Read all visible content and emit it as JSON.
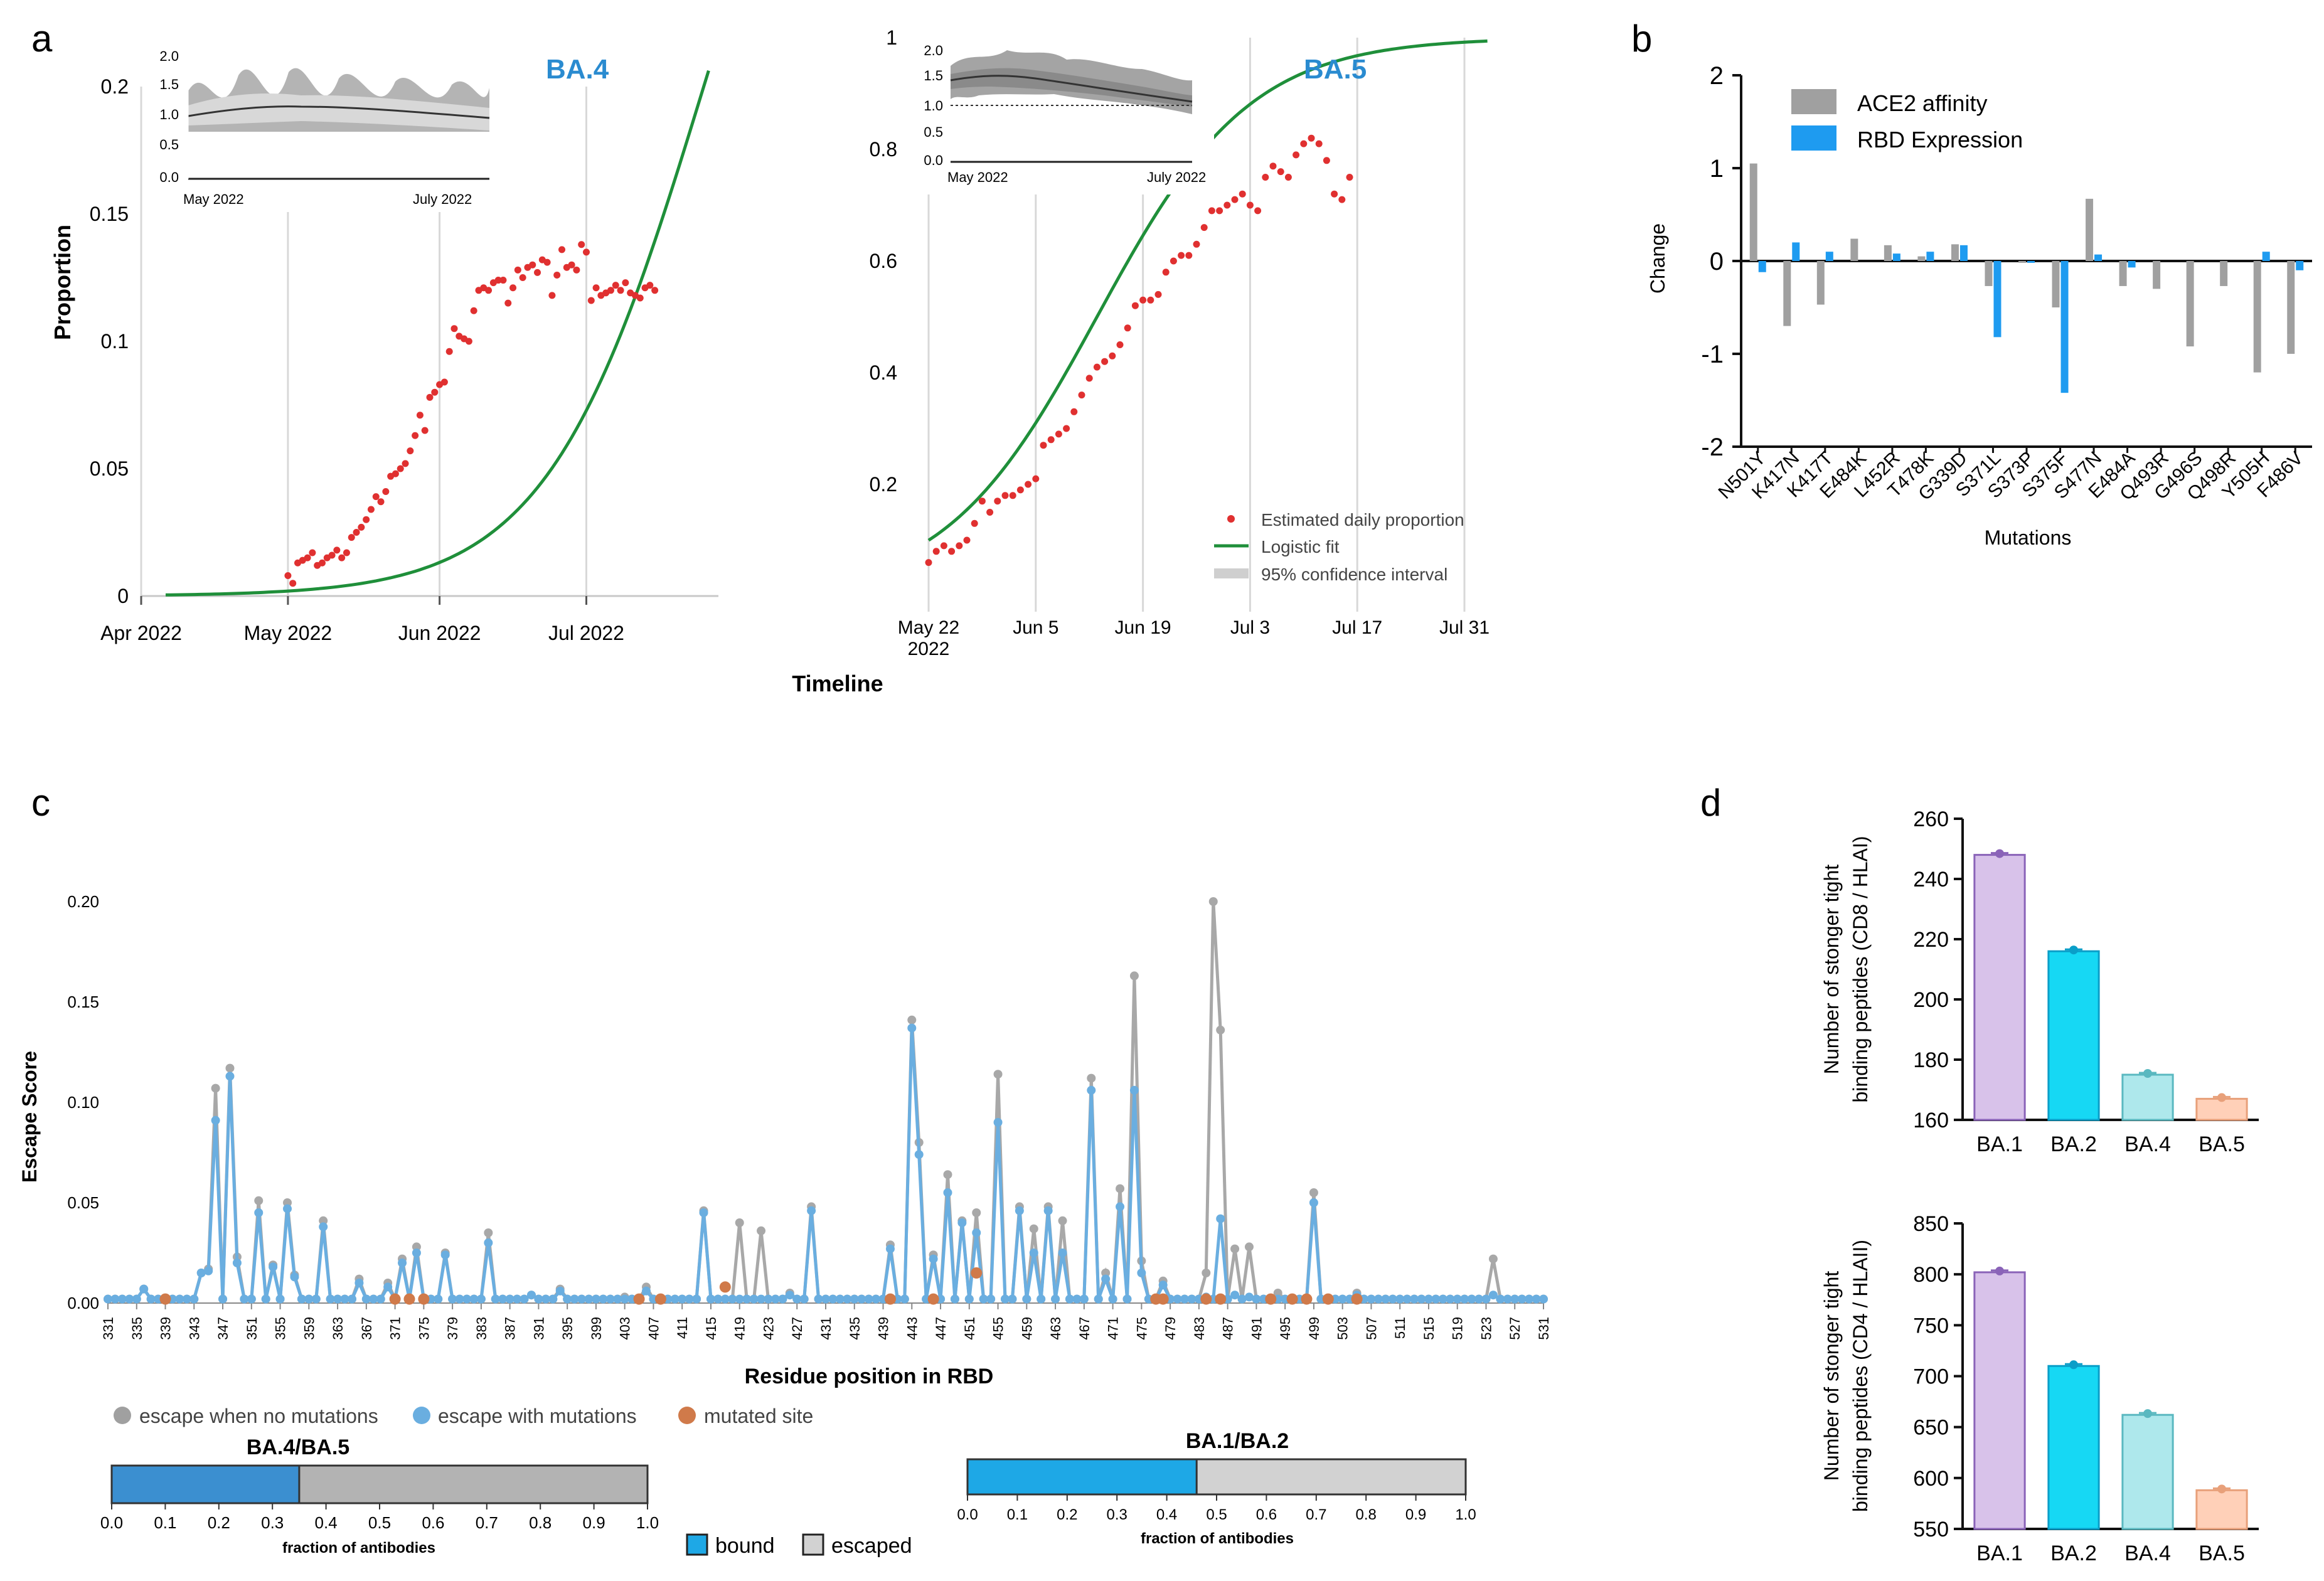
{
  "figure": {
    "panel_labels": [
      "a",
      "b",
      "c",
      "d"
    ],
    "a_xlabel": "Timeline",
    "a_ylabel": "Proportion",
    "inset_ba4": {
      "yticks": [
        "0.0",
        "0.5",
        "1.0",
        "1.5",
        "2.0"
      ],
      "xticks": [
        "May 2022",
        "July 2022"
      ]
    },
    "inset_ba5": {
      "yticks": [
        "0.0",
        "0.5",
        "1.0",
        "1.5",
        "2.0"
      ],
      "xticks": [
        "May 2022",
        "July 2022"
      ]
    },
    "legend_a": [
      "Estimated daily proportion",
      "Logistic fit",
      "95% confidence interval"
    ],
    "legend_c": [
      "escape when no mutations",
      "escape with mutations",
      "mutated site"
    ],
    "bar_ba45": {
      "label": "BA.4/BA.5",
      "bound_fraction": 0.35,
      "xlabel": "fraction of antibodies",
      "ticks": [
        "0.0",
        "0.1",
        "0.2",
        "0.3",
        "0.4",
        "0.5",
        "0.6",
        "0.7",
        "0.8",
        "0.9",
        "1.0"
      ]
    },
    "bar_ba12": {
      "label": "BA.1/BA.2",
      "bound_fraction": 0.46,
      "xlabel": "fraction of antibodies",
      "ticks": [
        "0.0",
        "0.1",
        "0.2",
        "0.3",
        "0.4",
        "0.5",
        "0.6",
        "0.7",
        "0.8",
        "0.9",
        "1.0"
      ]
    },
    "bound_escaped_legend": [
      "bound",
      "escaped"
    ]
  },
  "colors": {
    "red": "#e03030",
    "green": "#1f8f3a",
    "gray": "#a0a0a0",
    "blue": "#1e9bf0",
    "lightblue": "#6aaee0",
    "orange": "#d07a4a",
    "title_blue": "#2a8bd0"
  },
  "chart_data": [
    {
      "id": "a1",
      "type": "scatter",
      "title": "BA.4",
      "xlabel": "Timeline",
      "ylabel": "Proportion",
      "xticks": [
        "Apr 2022",
        "May 2022",
        "Jun 2022",
        "Jul 2022"
      ],
      "yticks": [
        "0",
        "0.05",
        "0.1",
        "0.15",
        "0.2"
      ],
      "xlim": [
        0,
        118
      ],
      "ylim": [
        0,
        0.2
      ],
      "points_day": [
        30,
        31,
        32,
        33,
        34,
        35,
        36,
        37,
        38,
        39,
        40,
        41,
        42,
        43,
        44,
        45,
        46,
        47,
        48,
        49,
        50,
        51,
        52,
        53,
        54,
        55,
        56,
        57,
        58,
        59,
        60,
        61,
        62,
        63,
        64,
        65,
        66,
        67,
        68,
        69,
        70,
        71,
        72,
        73,
        74,
        75,
        76,
        77,
        78,
        79,
        80,
        81,
        82,
        83,
        84,
        85,
        86,
        87,
        88,
        89,
        90,
        91,
        92,
        93,
        94,
        95,
        96,
        97,
        98,
        99,
        100,
        101,
        102,
        103,
        104,
        105
      ],
      "points_y": [
        0.008,
        0.005,
        0.013,
        0.014,
        0.015,
        0.017,
        0.012,
        0.013,
        0.015,
        0.016,
        0.018,
        0.015,
        0.017,
        0.023,
        0.025,
        0.027,
        0.03,
        0.034,
        0.039,
        0.037,
        0.041,
        0.047,
        0.048,
        0.05,
        0.052,
        0.057,
        0.063,
        0.071,
        0.065,
        0.078,
        0.08,
        0.083,
        0.084,
        0.096,
        0.105,
        0.102,
        0.101,
        0.1,
        0.112,
        0.12,
        0.121,
        0.12,
        0.123,
        0.124,
        0.124,
        0.115,
        0.121,
        0.128,
        0.125,
        0.129,
        0.13,
        0.127,
        0.132,
        0.131,
        0.118,
        0.126,
        0.136,
        0.129,
        0.13,
        0.128,
        0.138,
        0.135,
        0.116,
        0.121,
        0.118,
        0.119,
        0.12,
        0.122,
        0.12,
        0.123,
        0.119,
        0.118,
        0.117,
        0.121,
        0.122,
        0.12
      ],
      "fit_k": 0.0626,
      "fit_t0": 115,
      "fit_L": 0.4
    },
    {
      "id": "a2",
      "type": "scatter",
      "title": "BA.5",
      "xticks": [
        "May 22\n2022",
        "Jun 5",
        "Jun 19",
        "Jul 3",
        "Jul 17",
        "Jul 31"
      ],
      "yticks": [
        "0.2",
        "0.4",
        "0.6",
        "0.8",
        "1"
      ],
      "xlim": [
        0,
        75
      ],
      "ylim": [
        0,
        1
      ],
      "points_day": [
        0,
        1,
        2,
        3,
        4,
        5,
        6,
        7,
        8,
        9,
        10,
        11,
        12,
        13,
        14,
        15,
        16,
        17,
        18,
        19,
        20,
        21,
        22,
        23,
        24,
        25,
        26,
        27,
        28,
        29,
        30,
        31,
        32,
        33,
        34,
        35,
        36,
        37,
        38,
        39,
        40,
        41,
        42,
        43,
        44,
        45,
        46,
        47,
        48,
        49,
        50,
        51,
        52,
        53,
        54,
        55
      ],
      "points_y": [
        0.06,
        0.08,
        0.09,
        0.08,
        0.09,
        0.1,
        0.13,
        0.17,
        0.15,
        0.17,
        0.18,
        0.18,
        0.19,
        0.2,
        0.21,
        0.27,
        0.28,
        0.29,
        0.3,
        0.33,
        0.36,
        0.39,
        0.41,
        0.42,
        0.43,
        0.45,
        0.48,
        0.52,
        0.53,
        0.53,
        0.54,
        0.58,
        0.6,
        0.61,
        0.61,
        0.63,
        0.66,
        0.69,
        0.69,
        0.7,
        0.71,
        0.72,
        0.7,
        0.69,
        0.75,
        0.77,
        0.76,
        0.75,
        0.79,
        0.81,
        0.82,
        0.81,
        0.78,
        0.72,
        0.71,
        0.75
      ],
      "fit_k": 0.1,
      "fit_t0": 22
    },
    {
      "id": "b",
      "type": "bar",
      "series_names": [
        "ACE2 affinity",
        "RBD Expression"
      ],
      "categories": [
        "N501Y",
        "K417N",
        "K417T",
        "E484K",
        "L452R",
        "T478K",
        "G339D",
        "S371L",
        "S373P",
        "S375F",
        "S477N",
        "E484A",
        "Q493R",
        "G496S",
        "Q498R",
        "Y505H",
        "F486V"
      ],
      "ace2": [
        1.05,
        -0.7,
        -0.47,
        0.24,
        0.17,
        0.05,
        0.18,
        -0.27,
        -0.02,
        -0.5,
        0.67,
        -0.27,
        -0.3,
        -0.92,
        -0.27,
        -1.2,
        -1.0
      ],
      "rbd": [
        -0.12,
        0.2,
        0.1,
        0.0,
        0.08,
        0.1,
        0.17,
        -0.82,
        -0.02,
        -1.42,
        0.07,
        -0.07,
        0.0,
        0.0,
        0.0,
        0.1,
        -0.1
      ],
      "ylabel": "Change",
      "xlabel": "Mutations",
      "yticks": [
        "2",
        "1",
        "0",
        "-1",
        "-2"
      ],
      "ylim": [
        -2,
        2
      ]
    },
    {
      "id": "c",
      "type": "line",
      "ylabel": "Escape Score",
      "xlabel": "Residue position in RBD",
      "yticks": [
        "0.00",
        "0.05",
        "0.10",
        "0.15",
        "0.20"
      ],
      "ylim": [
        0,
        0.2
      ],
      "xticks": [
        "331",
        "335",
        "339",
        "343",
        "347",
        "351",
        "355",
        "359",
        "363",
        "367",
        "371",
        "375",
        "379",
        "383",
        "387",
        "391",
        "395",
        "399",
        "403",
        "407",
        "411",
        "415",
        "419",
        "423",
        "427",
        "431",
        "435",
        "439",
        "443",
        "447",
        "451",
        "455",
        "459",
        "463",
        "467",
        "471",
        "475",
        "479",
        "483",
        "487",
        "491",
        "495",
        "499",
        "503",
        "507",
        "511",
        "515",
        "519",
        "523",
        "527",
        "531"
      ],
      "xlim": [
        331,
        531
      ],
      "gray_peaks": [
        [
          336,
          0.007
        ],
        [
          344,
          0.015
        ],
        [
          345,
          0.017
        ],
        [
          346,
          0.107
        ],
        [
          348,
          0.117
        ],
        [
          349,
          0.023
        ],
        [
          352,
          0.051
        ],
        [
          354,
          0.019
        ],
        [
          356,
          0.05
        ],
        [
          357,
          0.014
        ],
        [
          361,
          0.041
        ],
        [
          366,
          0.012
        ],
        [
          370,
          0.01
        ],
        [
          372,
          0.022
        ],
        [
          374,
          0.028
        ],
        [
          378,
          0.025
        ],
        [
          384,
          0.035
        ],
        [
          390,
          0.004
        ],
        [
          394,
          0.007
        ],
        [
          403,
          0.003
        ],
        [
          406,
          0.008
        ],
        [
          414,
          0.046
        ],
        [
          419,
          0.04
        ],
        [
          422,
          0.036
        ],
        [
          426,
          0.005
        ],
        [
          429,
          0.048
        ],
        [
          440,
          0.029
        ],
        [
          443,
          0.141
        ],
        [
          444,
          0.08
        ],
        [
          446,
          0.024
        ],
        [
          448,
          0.064
        ],
        [
          450,
          0.041
        ],
        [
          452,
          0.045
        ],
        [
          455,
          0.114
        ],
        [
          458,
          0.048
        ],
        [
          460,
          0.037
        ],
        [
          462,
          0.048
        ],
        [
          464,
          0.041
        ],
        [
          468,
          0.112
        ],
        [
          470,
          0.015
        ],
        [
          472,
          0.057
        ],
        [
          474,
          0.163
        ],
        [
          475,
          0.021
        ],
        [
          478,
          0.011
        ],
        [
          484,
          0.015
        ],
        [
          485,
          0.2
        ],
        [
          486,
          0.136
        ],
        [
          488,
          0.027
        ],
        [
          490,
          0.028
        ],
        [
          494,
          0.005
        ],
        [
          499,
          0.055
        ],
        [
          505,
          0.005
        ],
        [
          524,
          0.022
        ]
      ],
      "blue_peaks": [
        [
          336,
          0.007
        ],
        [
          344,
          0.015
        ],
        [
          345,
          0.016
        ],
        [
          346,
          0.091
        ],
        [
          348,
          0.113
        ],
        [
          349,
          0.02
        ],
        [
          352,
          0.045
        ],
        [
          354,
          0.018
        ],
        [
          356,
          0.047
        ],
        [
          357,
          0.013
        ],
        [
          361,
          0.038
        ],
        [
          366,
          0.01
        ],
        [
          370,
          0.008
        ],
        [
          372,
          0.02
        ],
        [
          374,
          0.025
        ],
        [
          378,
          0.024
        ],
        [
          384,
          0.03
        ],
        [
          390,
          0.004
        ],
        [
          394,
          0.006
        ],
        [
          406,
          0.006
        ],
        [
          414,
          0.045
        ],
        [
          426,
          0.004
        ],
        [
          429,
          0.046
        ],
        [
          440,
          0.027
        ],
        [
          443,
          0.137
        ],
        [
          444,
          0.074
        ],
        [
          446,
          0.022
        ],
        [
          448,
          0.055
        ],
        [
          450,
          0.04
        ],
        [
          452,
          0.035
        ],
        [
          455,
          0.09
        ],
        [
          458,
          0.046
        ],
        [
          460,
          0.025
        ],
        [
          462,
          0.046
        ],
        [
          464,
          0.025
        ],
        [
          468,
          0.106
        ],
        [
          470,
          0.012
        ],
        [
          472,
          0.048
        ],
        [
          474,
          0.106
        ],
        [
          475,
          0.015
        ],
        [
          478,
          0.009
        ],
        [
          484,
          0.003
        ],
        [
          486,
          0.042
        ],
        [
          488,
          0.004
        ],
        [
          490,
          0.003
        ],
        [
          499,
          0.05
        ],
        [
          505,
          0.004
        ],
        [
          524,
          0.004
        ]
      ],
      "mutated_sites": [
        [
          339,
          0.002
        ],
        [
          371,
          0.002
        ],
        [
          373,
          0.002
        ],
        [
          375,
          0.002
        ],
        [
          405,
          0.002
        ],
        [
          408,
          0.002
        ],
        [
          417,
          0.008
        ],
        [
          440,
          0.002
        ],
        [
          446,
          0.002
        ],
        [
          452,
          0.015
        ],
        [
          477,
          0.002
        ],
        [
          478,
          0.002
        ],
        [
          484,
          0.002
        ],
        [
          486,
          0.002
        ],
        [
          493,
          0.002
        ],
        [
          496,
          0.002
        ],
        [
          498,
          0.002
        ],
        [
          501,
          0.002
        ],
        [
          505,
          0.002
        ]
      ]
    },
    {
      "id": "d1",
      "type": "bar",
      "categories": [
        "BA.1",
        "BA.2",
        "BA.4",
        "BA.5"
      ],
      "values": [
        248,
        216,
        175,
        167
      ],
      "ylabel": "Number of stonger tight\nbinding peptides (CD8 / HLAI)",
      "yticks": [
        "160",
        "180",
        "200",
        "220",
        "240",
        "260"
      ],
      "ylim": [
        160,
        260
      ],
      "colors": [
        "#d8c2ea",
        "#16d8f4",
        "#aee8ec",
        "#ffd0b8"
      ],
      "edge_colors": [
        "#8a63b8",
        "#0a9ec8",
        "#5ab8c0",
        "#e8a07a"
      ]
    },
    {
      "id": "d2",
      "type": "bar",
      "categories": [
        "BA.1",
        "BA.2",
        "BA.4",
        "BA.5"
      ],
      "values": [
        802,
        710,
        662,
        588
      ],
      "ylabel": "Number of stonger tight\nbinding peptides (CD4 / HLAII)",
      "yticks": [
        "550",
        "600",
        "650",
        "700",
        "750",
        "800",
        "850"
      ],
      "ylim": [
        550,
        850
      ],
      "colors": [
        "#d8c2ea",
        "#16d8f4",
        "#aee8ec",
        "#ffd0b8"
      ],
      "edge_colors": [
        "#8a63b8",
        "#0a9ec8",
        "#5ab8c0",
        "#e8a07a"
      ]
    }
  ]
}
